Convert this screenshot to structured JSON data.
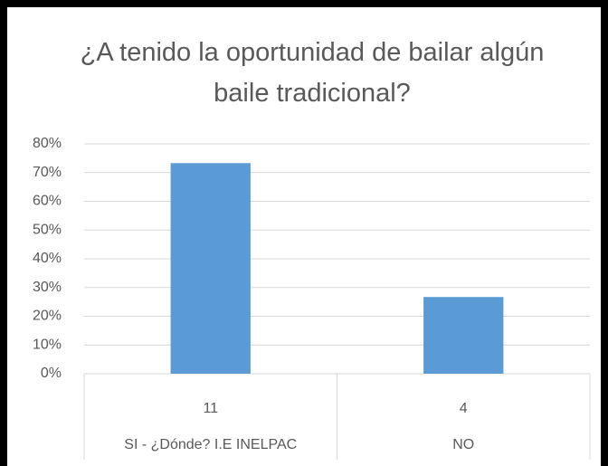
{
  "chart_data": {
    "type": "bar",
    "title": "¿A tenido la oportunidad de bailar algún baile tradicional?",
    "categories": [
      "SI - ¿Dónde? I.E INELPAC",
      "NO"
    ],
    "counts": [
      11,
      4
    ],
    "values": [
      73.3,
      26.7
    ],
    "color": "#5b9bd5",
    "ylim": [
      0,
      80
    ],
    "yticks": [
      {
        "value": 0,
        "label": "0%"
      },
      {
        "value": 10,
        "label": "10%"
      },
      {
        "value": 20,
        "label": "20%"
      },
      {
        "value": 30,
        "label": "30%"
      },
      {
        "value": 40,
        "label": "40%"
      },
      {
        "value": 50,
        "label": "50%"
      },
      {
        "value": 60,
        "label": "60%"
      },
      {
        "value": 70,
        "label": "70%"
      },
      {
        "value": 80,
        "label": "80%"
      }
    ],
    "grid": true
  }
}
